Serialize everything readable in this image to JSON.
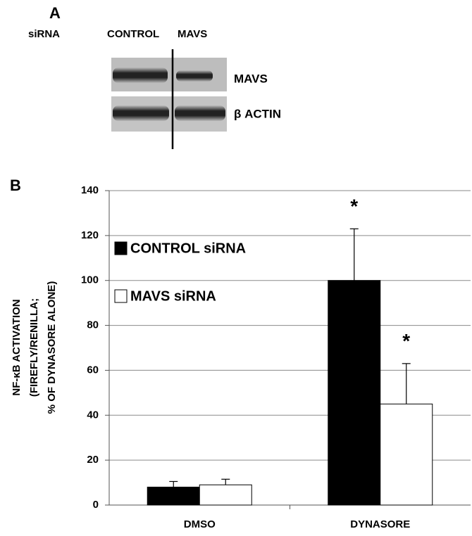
{
  "panel_a": {
    "panel_label": "A",
    "row_header": "siRNA",
    "lanes": [
      "CONTROL",
      "MAVS"
    ],
    "bands": [
      "MAVS",
      "β ACTIN"
    ]
  },
  "chart_data": {
    "type": "bar",
    "panel_label": "B",
    "y_label": [
      "NF-κB ACTIVATION",
      "(FIREFLY/RENILLA;",
      "% OF DYNASORE ALONE)"
    ],
    "categories": [
      "DMSO",
      "DYNASORE"
    ],
    "series": [
      {
        "name": "CONTROL siRNA",
        "color": "#000000",
        "values": [
          8,
          100
        ],
        "errors": [
          2.5,
          23
        ],
        "annotations": [
          null,
          "*"
        ]
      },
      {
        "name": "MAVS siRNA",
        "color": "#ffffff",
        "values": [
          9,
          45
        ],
        "errors": [
          2.5,
          18
        ],
        "annotations": [
          null,
          "*"
        ]
      }
    ],
    "ylim": [
      0,
      140
    ],
    "yticks": [
      0,
      20,
      40,
      60,
      80,
      100,
      120,
      140
    ],
    "grid": true,
    "legend": "upper left"
  }
}
